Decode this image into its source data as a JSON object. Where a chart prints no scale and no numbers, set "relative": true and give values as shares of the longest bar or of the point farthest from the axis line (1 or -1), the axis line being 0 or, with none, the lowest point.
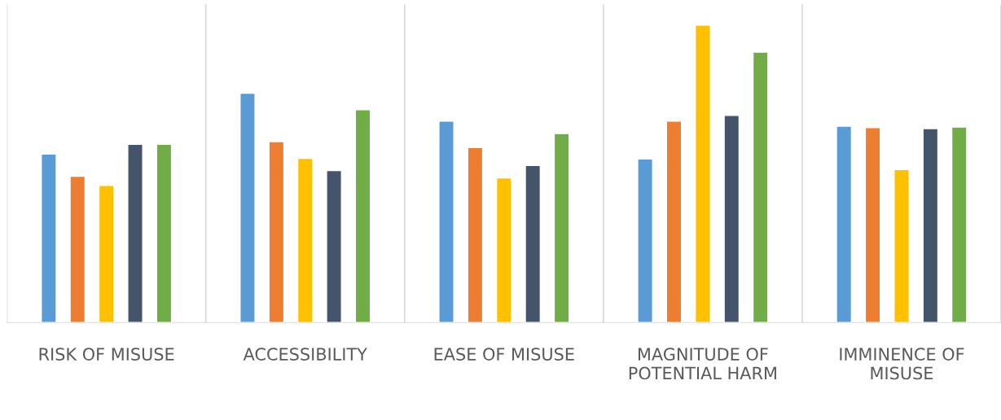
{
  "chart_data": {
    "type": "bar",
    "relative": true,
    "grid": "x",
    "legend": false,
    "categories": [
      "RISK OF MISUSE",
      "ACCESSIBILITY",
      "EASE OF MISUSE",
      "MAGNITUDE OF POTENTIAL HARM",
      "IMMINENCE OF MISUSE"
    ],
    "series": [
      {
        "color": "#5b9bd5",
        "values": [
          0.566,
          0.771,
          0.677,
          0.55,
          0.66
        ]
      },
      {
        "color": "#ed7d31",
        "values": [
          0.492,
          0.608,
          0.588,
          0.677,
          0.655
        ]
      },
      {
        "color": "#ffc000",
        "values": [
          0.461,
          0.552,
          0.486,
          1,
          0.514
        ]
      },
      {
        "color": "#44546a",
        "values": [
          0.599,
          0.511,
          0.528,
          0.696,
          0.652
        ]
      },
      {
        "color": "#70ad47",
        "values": [
          0.599,
          0.715,
          0.635,
          0.909,
          0.657
        ]
      }
    ]
  }
}
